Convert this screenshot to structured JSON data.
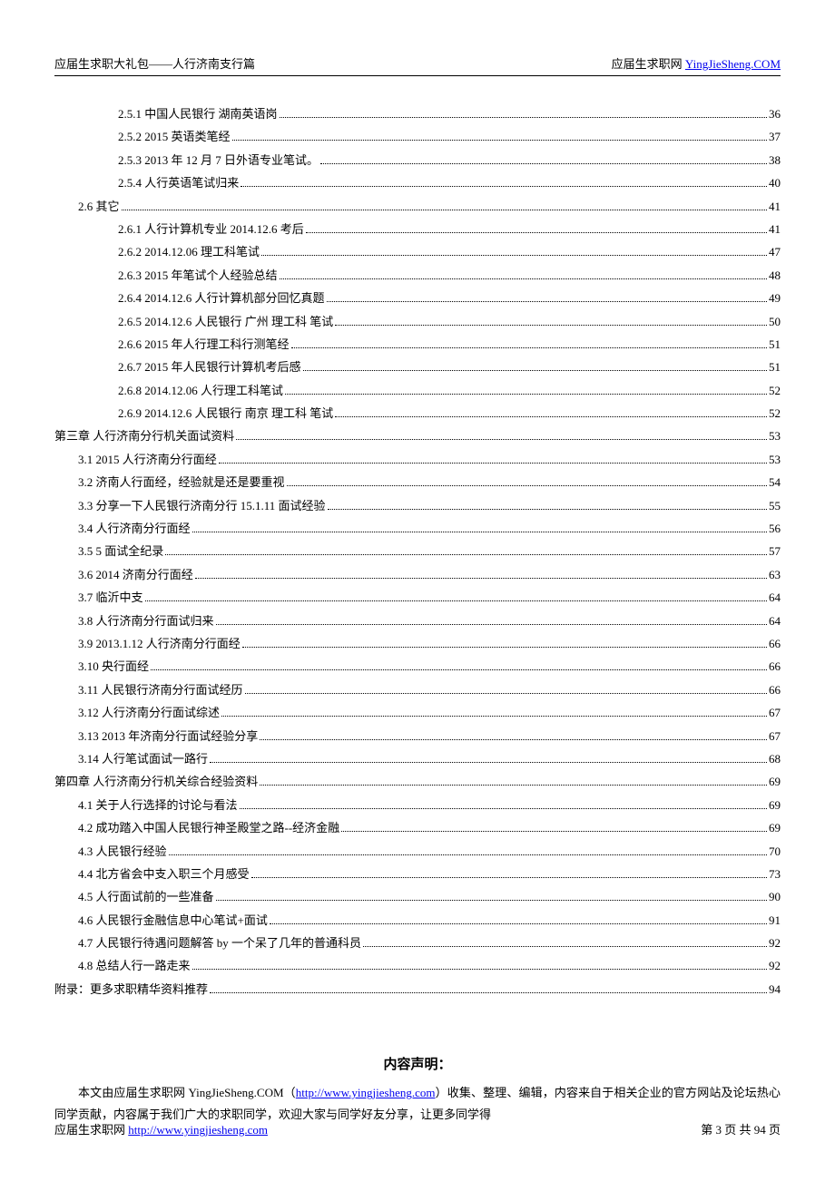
{
  "header": {
    "left": "应届生求职大礼包——人行济南支行篇",
    "right_text": "应届生求职网 ",
    "right_link": "YingJieSheng.COM"
  },
  "toc": [
    {
      "indent": 2,
      "label": "2.5.1   中国人民银行  湖南英语岗",
      "page": "36"
    },
    {
      "indent": 2,
      "label": "2.5.2   2015 英语类笔经",
      "page": "37"
    },
    {
      "indent": 2,
      "label": "2.5.3   2013 年 12 月 7 日外语专业笔试。",
      "page": "38"
    },
    {
      "indent": 2,
      "label": "2.5.4   人行英语笔试归来",
      "page": "40"
    },
    {
      "indent": 1,
      "label": "2.6 其它",
      "page": "41"
    },
    {
      "indent": 2,
      "label": "2.6.1   人行计算机专业 2014.12.6 考后",
      "page": "41"
    },
    {
      "indent": 2,
      "label": "2.6.2   2014.12.06 理工科笔试",
      "page": "47"
    },
    {
      "indent": 2,
      "label": "2.6.3   2015 年笔试个人经验总结",
      "page": "48"
    },
    {
      "indent": 2,
      "label": "2.6.4   2014.12.6 人行计算机部分回忆真题",
      "page": "49"
    },
    {
      "indent": 2,
      "label": "2.6.5   2014.12.6  人民银行  广州  理工科  笔试",
      "page": "50"
    },
    {
      "indent": 2,
      "label": "2.6.6   2015 年人行理工科行测笔经",
      "page": "51"
    },
    {
      "indent": 2,
      "label": "2.6.7   2015 年人民银行计算机考后感",
      "page": "51"
    },
    {
      "indent": 2,
      "label": "2.6.8   2014.12.06 人行理工科笔试",
      "page": "52"
    },
    {
      "indent": 2,
      "label": "2.6.9   2014.12.6  人民银行  南京  理工科  笔试",
      "page": "52"
    },
    {
      "indent": 0,
      "label": "第三章  人行济南分行机关面试资料",
      "page": "53"
    },
    {
      "indent": 1,
      "label": "3.1 2015 人行济南分行面经",
      "page": "53"
    },
    {
      "indent": 1,
      "label": "3.2  济南人行面经，经验就是还是要重视",
      "page": "54"
    },
    {
      "indent": 1,
      "label": "3.3  分享一下人民银行济南分行 15.1.11 面试经验",
      "page": "55"
    },
    {
      "indent": 1,
      "label": "3.4   人行济南分行面经",
      "page": "56"
    },
    {
      "indent": 1,
      "label": "3.5 5 面试全纪录",
      "page": "57"
    },
    {
      "indent": 1,
      "label": "3.6 2014 济南分行面经",
      "page": "63"
    },
    {
      "indent": 1,
      "label": "3.7  临沂中支",
      "page": "64"
    },
    {
      "indent": 1,
      "label": "3.8  人行济南分行面试归来",
      "page": "64"
    },
    {
      "indent": 1,
      "label": "3.9 2013.1.12 人行济南分行面经",
      "page": "66"
    },
    {
      "indent": 1,
      "label": "3.10  央行面经",
      "page": "66"
    },
    {
      "indent": 1,
      "label": "3.11  人民银行济南分行面试经历",
      "page": "66"
    },
    {
      "indent": 1,
      "label": "3.12  人行济南分行面试综述",
      "page": "67"
    },
    {
      "indent": 1,
      "label": "3.13 2013 年济南分行面试经验分享",
      "page": "67"
    },
    {
      "indent": 1,
      "label": "3.14  人行笔试面试一路行",
      "page": "68"
    },
    {
      "indent": 0,
      "label": "第四章  人行济南分行机关综合经验资料",
      "page": "69"
    },
    {
      "indent": 1,
      "label": "4.1 关于人行选择的讨论与看法",
      "page": "69"
    },
    {
      "indent": 1,
      "label": "4.2 成功踏入中国人民银行神圣殿堂之路--经济金融",
      "page": "69"
    },
    {
      "indent": 1,
      "label": "4.3 人民银行经验",
      "page": "70"
    },
    {
      "indent": 1,
      "label": "4.4 北方省会中支入职三个月感受",
      "page": "73"
    },
    {
      "indent": 1,
      "label": "4.5 人行面试前的一些准备",
      "page": "90"
    },
    {
      "indent": 1,
      "label": "4.6 人民银行金融信息中心笔试+面试",
      "page": "91"
    },
    {
      "indent": 1,
      "label": "4.7 人民银行待遇问题解答 by 一个呆了几年的普通科员",
      "page": "92"
    },
    {
      "indent": 1,
      "label": "4.8 总结人行一路走来",
      "page": "92"
    },
    {
      "indent": 0,
      "label": "附录：更多求职精华资料推荐",
      "page": "94"
    }
  ],
  "declaration": {
    "title": "内容声明：",
    "body_before": "本文由应届生求职网 YingJieSheng.COM（",
    "body_link": "http://www.yingjiesheng.com",
    "body_after": "）收集、整理、编辑，内容来自于相关企业的官方网站及论坛热心同学贡献，内容属于我们广大的求职同学，欢迎大家与同学好友分享，让更多同学得"
  },
  "footer": {
    "left_text": "应届生求职网 ",
    "left_link": "http://www.yingjiesheng.com",
    "right": "第 3 页 共 94 页"
  }
}
